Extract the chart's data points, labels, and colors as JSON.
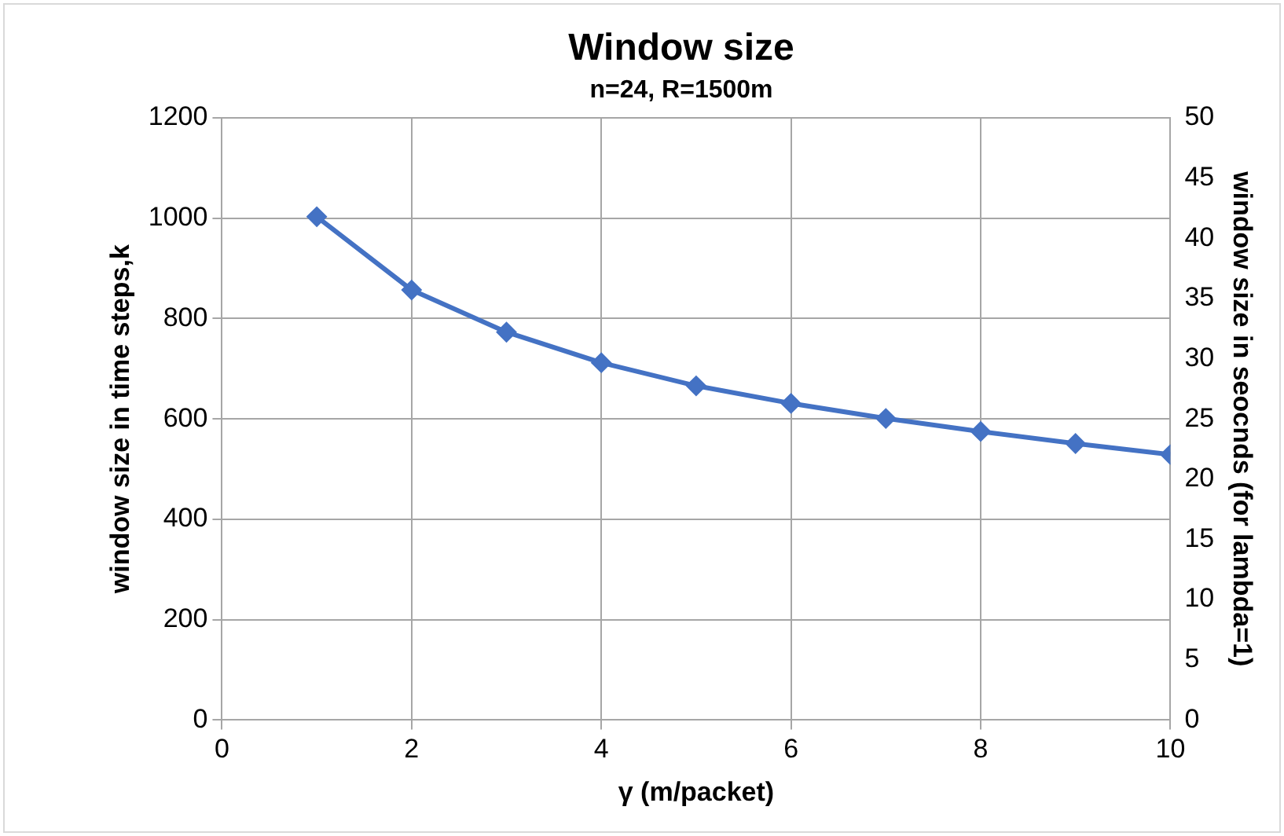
{
  "chart_data": {
    "type": "line",
    "title": "Window size",
    "subtitle": "n=24, R=1500m",
    "xlabel": "γ (m/packet)",
    "ylabel": "window size in time steps,k",
    "y2label": "window size in seocnds (for lambda=1)",
    "x": [
      1,
      2,
      3,
      4,
      5,
      6,
      7,
      8,
      9,
      10
    ],
    "series": [
      {
        "color": "#4472c4",
        "values": [
          1003,
          857,
          773,
          712,
          666,
          631,
          601,
          575,
          551,
          529
        ]
      }
    ],
    "xlim": [
      0,
      10
    ],
    "xticks": [
      0,
      2,
      4,
      6,
      8,
      10
    ],
    "ylim": [
      0,
      1200
    ],
    "yticks": [
      0,
      200,
      400,
      600,
      800,
      1000,
      1200
    ],
    "y2lim": [
      0,
      50
    ],
    "y2ticks": [
      0,
      5,
      10,
      15,
      20,
      25,
      30,
      35,
      40,
      45,
      50
    ],
    "grid": true,
    "legend": false,
    "marker": "diamond",
    "line_style": "solid"
  }
}
